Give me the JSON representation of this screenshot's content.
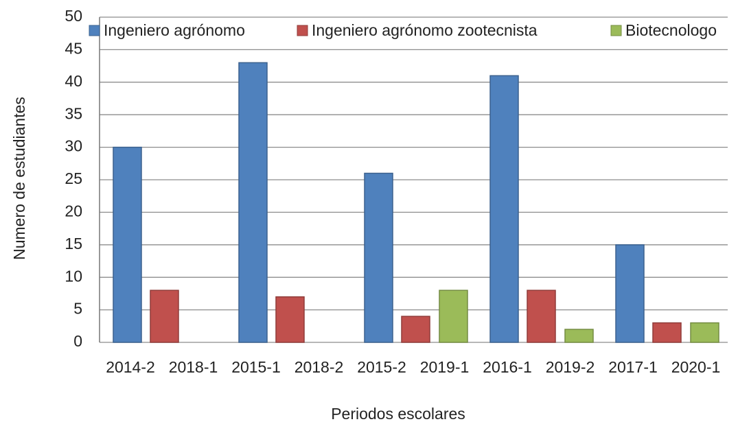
{
  "chart_data": {
    "type": "bar",
    "y_label": "Numero de estudiantes",
    "x_label": "Periodos escolares",
    "categories": [
      [
        "2014-2",
        "2018-1"
      ],
      [
        "2015-1",
        "2018-2"
      ],
      [
        "2015-2",
        "2019-1"
      ],
      [
        "2016-1",
        "2019-2"
      ],
      [
        "2017-1",
        "2020-1"
      ]
    ],
    "series": [
      {
        "name": "Ingeniero agrónomo",
        "color": "#4f81bd",
        "values": [
          30,
          43,
          26,
          41,
          15
        ]
      },
      {
        "name": "Ingeniero agrónomo zootecnista",
        "color": "#c0504d",
        "values": [
          8,
          7,
          4,
          8,
          3
        ]
      },
      {
        "name": "Biotecnologo",
        "color": "#9bbb59",
        "values": [
          0,
          0,
          8,
          2,
          3
        ]
      }
    ],
    "ylim": [
      0,
      50
    ],
    "yticks": [
      0,
      5,
      10,
      15,
      20,
      25,
      30,
      35,
      40,
      45,
      50
    ],
    "grid": true,
    "legend": "top"
  }
}
